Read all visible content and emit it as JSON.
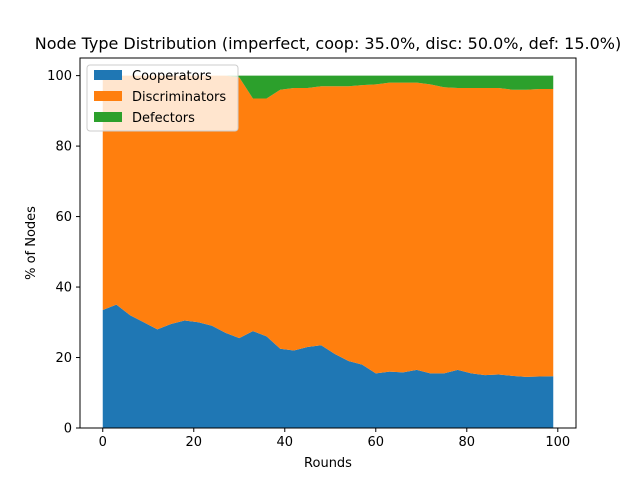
{
  "chart_data": {
    "type": "area",
    "stacked": true,
    "title": "Node Type Distribution (imperfect, coop: 35.0%, disc: 50.0%, def: 15.0%)",
    "xlabel": "Rounds",
    "ylabel": "% of Nodes",
    "xlim": [
      -5,
      104
    ],
    "ylim": [
      0,
      105
    ],
    "xticks": [
      0,
      20,
      40,
      60,
      80,
      100
    ],
    "yticks": [
      0,
      20,
      40,
      60,
      80,
      100
    ],
    "grid": false,
    "legend_position": "top-left",
    "x_step": 3,
    "x_start": 0,
    "series": [
      {
        "name": "Cooperators",
        "color": "#1f77b4",
        "values": [
          33.5,
          35.0,
          32.0,
          30.0,
          28.0,
          29.5,
          30.5,
          30.0,
          29.0,
          27.0,
          25.5,
          27.5,
          26.0,
          22.5,
          22.0,
          23.0,
          23.5,
          21.0,
          19.0,
          18.0,
          15.5,
          16.0,
          15.8,
          16.5,
          15.5,
          15.5,
          16.5,
          15.5,
          15.0,
          15.2,
          14.8,
          14.5,
          14.6,
          14.7
        ]
      },
      {
        "name": "Discriminators",
        "color": "#ff7f0e",
        "values": [
          66.5,
          65.0,
          68.0,
          70.0,
          72.0,
          70.5,
          69.5,
          70.0,
          71.0,
          73.0,
          74.0,
          66.0,
          67.5,
          73.5,
          74.5,
          73.5,
          73.5,
          76.0,
          78.0,
          79.3,
          82.0,
          82.0,
          82.2,
          81.5,
          82.0,
          81.2,
          80.0,
          81.0,
          81.5,
          81.3,
          81.2,
          81.5,
          81.6,
          81.5
        ]
      },
      {
        "name": "Defectors",
        "color": "#2ca02c",
        "values": [
          0.0,
          0.0,
          0.0,
          0.0,
          0.0,
          0.0,
          0.0,
          0.0,
          0.0,
          0.0,
          0.5,
          6.5,
          6.5,
          4.0,
          3.5,
          3.5,
          3.0,
          3.0,
          3.0,
          2.7,
          2.5,
          2.0,
          2.0,
          2.0,
          2.5,
          3.3,
          3.5,
          3.5,
          3.5,
          3.5,
          4.0,
          4.0,
          3.8,
          3.8
        ]
      }
    ]
  }
}
